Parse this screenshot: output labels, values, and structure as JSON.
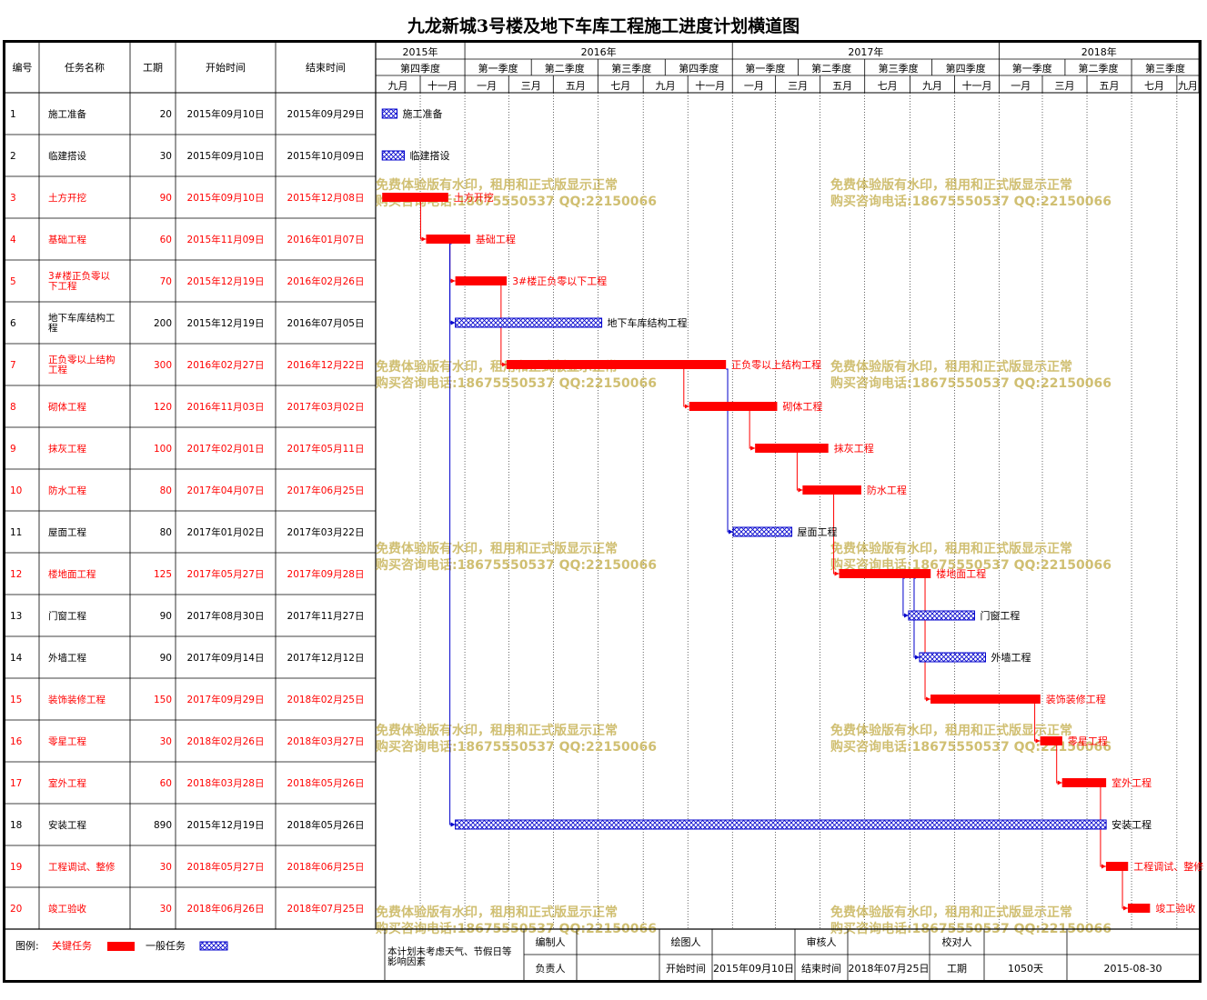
{
  "title": "九龙新城3号楼及地下车库工程施工进度计划横道图",
  "table_headers": [
    "编号",
    "任务名称",
    "工期",
    "开始时间",
    "结束时间"
  ],
  "years": [
    {
      "label": "2015年",
      "from": "2015-09-01",
      "to": "2016-01-01"
    },
    {
      "label": "2016年",
      "from": "2016-01-01",
      "to": "2017-01-01"
    },
    {
      "label": "2017年",
      "from": "2017-01-01",
      "to": "2018-01-01"
    },
    {
      "label": "2018年",
      "from": "2018-01-01",
      "to": "2018-10-01"
    }
  ],
  "quarters": [
    {
      "label": "第四季度",
      "from": "2015-09-01",
      "to": "2016-01-01"
    },
    {
      "label": "第一季度",
      "from": "2016-01-01",
      "to": "2016-04-01"
    },
    {
      "label": "第二季度",
      "from": "2016-04-01",
      "to": "2016-07-01"
    },
    {
      "label": "第三季度",
      "from": "2016-07-01",
      "to": "2016-10-01"
    },
    {
      "label": "第四季度",
      "from": "2016-10-01",
      "to": "2017-01-01"
    },
    {
      "label": "第一季度",
      "from": "2017-01-01",
      "to": "2017-04-01"
    },
    {
      "label": "第二季度",
      "from": "2017-04-01",
      "to": "2017-07-01"
    },
    {
      "label": "第三季度",
      "from": "2017-07-01",
      "to": "2017-10-01"
    },
    {
      "label": "第四季度",
      "from": "2017-10-01",
      "to": "2018-01-01"
    },
    {
      "label": "第一季度",
      "from": "2018-01-01",
      "to": "2018-04-01"
    },
    {
      "label": "第二季度",
      "from": "2018-04-01",
      "to": "2018-07-01"
    },
    {
      "label": "第三季度",
      "from": "2018-07-01",
      "to": "2018-10-01"
    }
  ],
  "months": [
    {
      "label": "九月",
      "from": "2015-09-01",
      "to": "2015-11-01"
    },
    {
      "label": "十一月",
      "from": "2015-11-01",
      "to": "2016-01-01"
    },
    {
      "label": "一月",
      "from": "2016-01-01",
      "to": "2016-03-01"
    },
    {
      "label": "三月",
      "from": "2016-03-01",
      "to": "2016-05-01"
    },
    {
      "label": "五月",
      "from": "2016-05-01",
      "to": "2016-07-01"
    },
    {
      "label": "七月",
      "from": "2016-07-01",
      "to": "2016-09-01"
    },
    {
      "label": "九月",
      "from": "2016-09-01",
      "to": "2016-11-01"
    },
    {
      "label": "十一月",
      "from": "2016-11-01",
      "to": "2017-01-01"
    },
    {
      "label": "一月",
      "from": "2017-01-01",
      "to": "2017-03-01"
    },
    {
      "label": "三月",
      "from": "2017-03-01",
      "to": "2017-05-01"
    },
    {
      "label": "五月",
      "from": "2017-05-01",
      "to": "2017-07-01"
    },
    {
      "label": "七月",
      "from": "2017-07-01",
      "to": "2017-09-01"
    },
    {
      "label": "九月",
      "from": "2017-09-01",
      "to": "2017-11-01"
    },
    {
      "label": "十一月",
      "from": "2017-11-01",
      "to": "2018-01-01"
    },
    {
      "label": "一月",
      "from": "2018-01-01",
      "to": "2018-03-01"
    },
    {
      "label": "三月",
      "from": "2018-03-01",
      "to": "2018-05-01"
    },
    {
      "label": "五月",
      "from": "2018-05-01",
      "to": "2018-07-01"
    },
    {
      "label": "七月",
      "from": "2018-07-01",
      "to": "2018-09-01"
    },
    {
      "label": "九月",
      "from": "2018-09-01",
      "to": "2018-10-01"
    }
  ],
  "chart_data": {
    "type": "gantt",
    "timeline_range": [
      "2015-09-01",
      "2018-10-01"
    ],
    "tasks": [
      {
        "id": "1",
        "name": "施工准备",
        "duration": "20",
        "start": "2015-09-10",
        "end": "2015-09-29",
        "start_text": "2015年09月10日",
        "end_text": "2015年09月29日",
        "critical": false,
        "bar_label": "施工准备"
      },
      {
        "id": "2",
        "name": "临建搭设",
        "duration": "30",
        "start": "2015-09-10",
        "end": "2015-10-09",
        "start_text": "2015年09月10日",
        "end_text": "2015年10月09日",
        "critical": false,
        "bar_label": "临建搭设"
      },
      {
        "id": "3",
        "name": "土方开挖",
        "duration": "90",
        "start": "2015-09-10",
        "end": "2015-12-08",
        "start_text": "2015年09月10日",
        "end_text": "2015年12月08日",
        "critical": true,
        "bar_label": "土方开挖"
      },
      {
        "id": "4",
        "name": "基础工程",
        "duration": "60",
        "start": "2015-11-09",
        "end": "2016-01-07",
        "start_text": "2015年11月09日",
        "end_text": "2016年01月07日",
        "critical": true,
        "bar_label": "基础工程"
      },
      {
        "id": "5",
        "name": "3#楼正负零以下工程",
        "duration": "70",
        "start": "2015-12-19",
        "end": "2016-02-26",
        "start_text": "2015年12月19日",
        "end_text": "2016年02月26日",
        "critical": true,
        "bar_label": "3#楼正负零以下工程"
      },
      {
        "id": "6",
        "name": "地下车库结构工程",
        "duration": "200",
        "start": "2015-12-19",
        "end": "2016-07-05",
        "start_text": "2015年12月19日",
        "end_text": "2016年07月05日",
        "critical": false,
        "bar_label": "地下车库结构工程"
      },
      {
        "id": "7",
        "name": "正负零以上结构工程",
        "duration": "300",
        "start": "2016-02-27",
        "end": "2016-12-22",
        "start_text": "2016年02月27日",
        "end_text": "2016年12月22日",
        "critical": true,
        "bar_label": "正负零以上结构工程"
      },
      {
        "id": "8",
        "name": "砌体工程",
        "duration": "120",
        "start": "2016-11-03",
        "end": "2017-03-02",
        "start_text": "2016年11月03日",
        "end_text": "2017年03月02日",
        "critical": true,
        "bar_label": "砌体工程"
      },
      {
        "id": "9",
        "name": "抹灰工程",
        "duration": "100",
        "start": "2017-02-01",
        "end": "2017-05-11",
        "start_text": "2017年02月01日",
        "end_text": "2017年05月11日",
        "critical": true,
        "bar_label": "抹灰工程"
      },
      {
        "id": "10",
        "name": "防水工程",
        "duration": "80",
        "start": "2017-04-07",
        "end": "2017-06-25",
        "start_text": "2017年04月07日",
        "end_text": "2017年06月25日",
        "critical": true,
        "bar_label": "防水工程"
      },
      {
        "id": "11",
        "name": "屋面工程",
        "duration": "80",
        "start": "2017-01-02",
        "end": "2017-03-22",
        "start_text": "2017年01月02日",
        "end_text": "2017年03月22日",
        "critical": false,
        "bar_label": "屋面工程"
      },
      {
        "id": "12",
        "name": "楼地面工程",
        "duration": "125",
        "start": "2017-05-27",
        "end": "2017-09-28",
        "start_text": "2017年05月27日",
        "end_text": "2017年09月28日",
        "critical": true,
        "bar_label": "楼地面工程"
      },
      {
        "id": "13",
        "name": "门窗工程",
        "duration": "90",
        "start": "2017-08-30",
        "end": "2017-11-27",
        "start_text": "2017年08月30日",
        "end_text": "2017年11月27日",
        "critical": false,
        "bar_label": "门窗工程"
      },
      {
        "id": "14",
        "name": "外墙工程",
        "duration": "90",
        "start": "2017-09-14",
        "end": "2017-12-12",
        "start_text": "2017年09月14日",
        "end_text": "2017年12月12日",
        "critical": false,
        "bar_label": "外墙工程"
      },
      {
        "id": "15",
        "name": "装饰装修工程",
        "duration": "150",
        "start": "2017-09-29",
        "end": "2018-02-25",
        "start_text": "2017年09月29日",
        "end_text": "2018年02月25日",
        "critical": true,
        "bar_label": "装饰装修工程"
      },
      {
        "id": "16",
        "name": "零星工程",
        "duration": "30",
        "start": "2018-02-26",
        "end": "2018-03-27",
        "start_text": "2018年02月26日",
        "end_text": "2018年03月27日",
        "critical": true,
        "bar_label": "零星工程"
      },
      {
        "id": "17",
        "name": "室外工程",
        "duration": "60",
        "start": "2018-03-28",
        "end": "2018-05-26",
        "start_text": "2018年03月28日",
        "end_text": "2018年05月26日",
        "critical": true,
        "bar_label": "室外工程"
      },
      {
        "id": "18",
        "name": "安装工程",
        "duration": "890",
        "start": "2015-12-19",
        "end": "2018-05-26",
        "start_text": "2015年12月19日",
        "end_text": "2018年05月26日",
        "critical": false,
        "bar_label": "安装工程"
      },
      {
        "id": "19",
        "name": "工程调试、整修",
        "duration": "30",
        "start": "2018-05-27",
        "end": "2018-06-25",
        "start_text": "2018年05月27日",
        "end_text": "2018年06月25日",
        "critical": true,
        "bar_label": "工程调试、整修"
      },
      {
        "id": "20",
        "name": "竣工验收",
        "duration": "30",
        "start": "2018-06-26",
        "end": "2018-07-25",
        "start_text": "2018年06月26日",
        "end_text": "2018年07月25日",
        "critical": true,
        "bar_label": "竣工验收"
      }
    ],
    "links": [
      {
        "from": "3",
        "to": "4",
        "critical": true
      },
      {
        "from": "4",
        "to": "5",
        "critical": true
      },
      {
        "from": "5",
        "to": "7",
        "critical": true
      },
      {
        "from": "7",
        "to": "8",
        "critical": true
      },
      {
        "from": "8",
        "to": "9",
        "critical": true
      },
      {
        "from": "9",
        "to": "10",
        "critical": true
      },
      {
        "from": "10",
        "to": "12",
        "critical": true
      },
      {
        "from": "12",
        "to": "15",
        "critical": true
      },
      {
        "from": "15",
        "to": "16",
        "critical": true
      },
      {
        "from": "16",
        "to": "17",
        "critical": true
      },
      {
        "from": "17",
        "to": "19",
        "critical": true
      },
      {
        "from": "19",
        "to": "20",
        "critical": true
      },
      {
        "from": "4",
        "to": "6",
        "critical": false
      },
      {
        "from": "4",
        "to": "18",
        "critical": false
      },
      {
        "from": "7",
        "to": "11",
        "critical": false
      },
      {
        "from": "12",
        "to": "13",
        "critical": false
      },
      {
        "from": "12",
        "to": "14",
        "critical": false
      }
    ],
    "colors": {
      "critical": "#ff0000",
      "normal": "#0000cc",
      "critical_text": "#ff0000",
      "watermark": "#c8b45a"
    }
  },
  "watermark": {
    "line1": "免费体验版有水印，租用和正式版显示正常",
    "line2": "购买咨询电话:18675550537 QQ:22150066"
  },
  "legend": {
    "prefix": "图例:",
    "critical_label": "关键任务",
    "normal_label": "一般任务"
  },
  "footer": {
    "note": "本计划未考虑天气、节假日等影响因素",
    "labels": {
      "compiler": "编制人",
      "drawer": "绘图人",
      "reviewer": "审核人",
      "checker": "校对人",
      "responsible": "负责人",
      "start": "开始时间",
      "end": "结束时间",
      "duration": "工期"
    },
    "values": {
      "start": "2015年09月10日",
      "end": "2018年07月25日",
      "duration": "1050天",
      "date": "2015-08-30"
    }
  }
}
